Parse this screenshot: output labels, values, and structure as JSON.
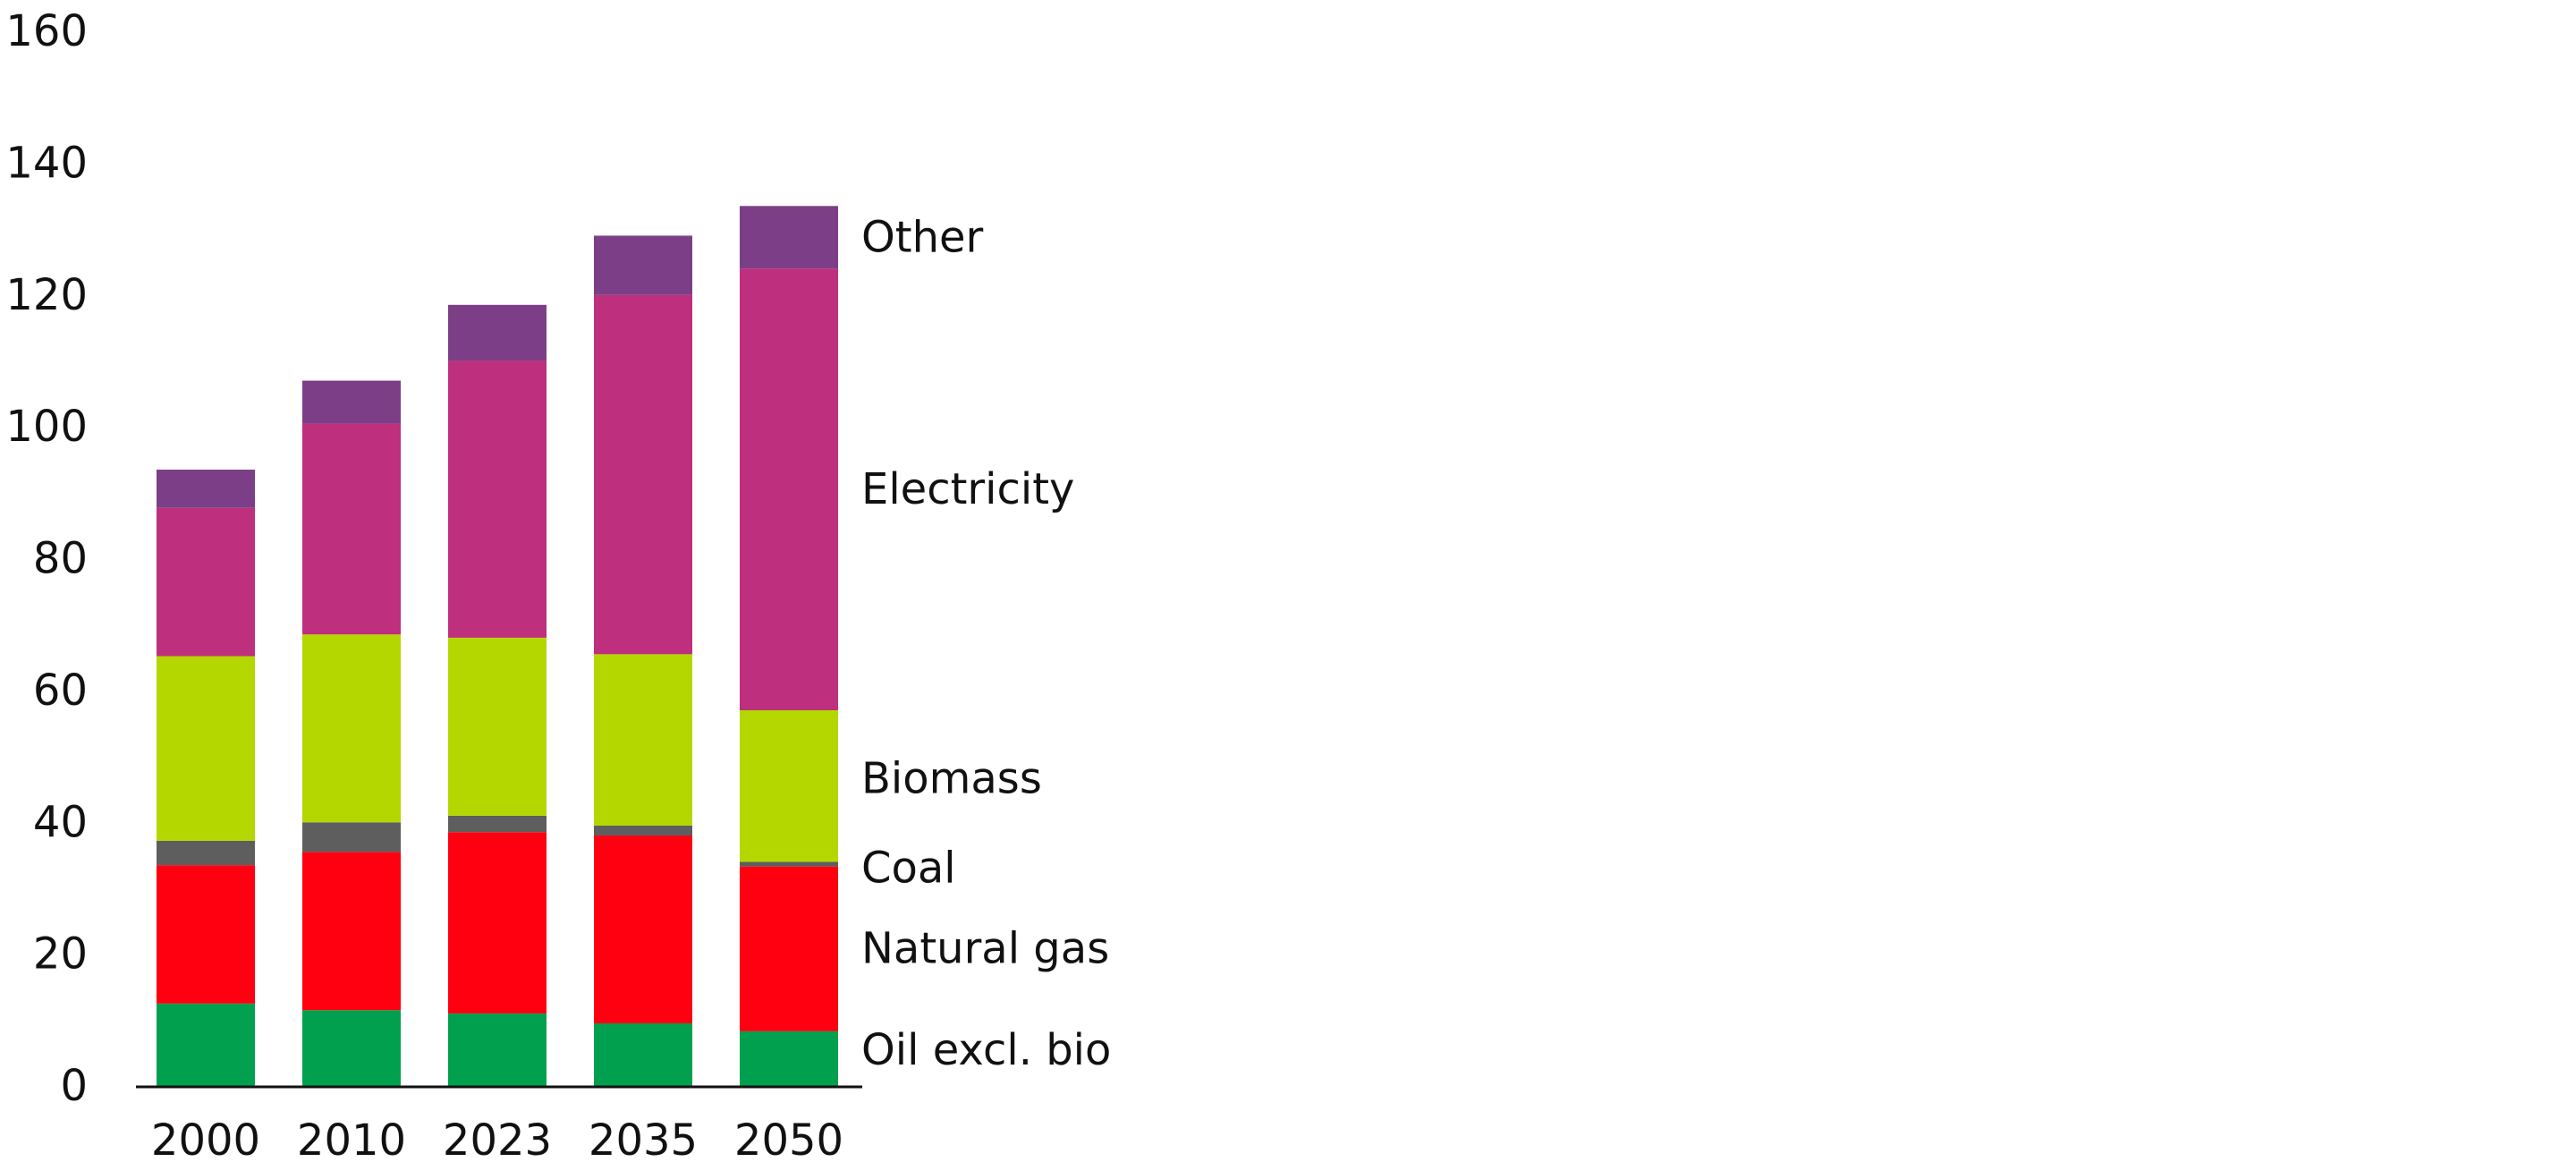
{
  "chart_data": {
    "type": "bar",
    "stacked": true,
    "categories": [
      "2000",
      "2010",
      "2023",
      "2035",
      "2050"
    ],
    "ylim": [
      0,
      160
    ],
    "yticks": [
      "0",
      "20",
      "40",
      "60",
      "80",
      "100",
      "120",
      "140",
      "160"
    ],
    "grid": false,
    "legend": "series labels at right of last bar",
    "series": [
      {
        "name": "Oil excl. bio",
        "color": "#00a04f",
        "values": [
          12.5,
          11.5,
          11,
          9.5,
          8.3
        ]
      },
      {
        "name": "Natural gas",
        "color": "#ff0010",
        "values": [
          21,
          24,
          27.5,
          28.5,
          25
        ]
      },
      {
        "name": "Coal",
        "color": "#5e5e5e",
        "values": [
          3.7,
          4.5,
          2.5,
          1.5,
          0.7
        ]
      },
      {
        "name": "Biomass",
        "color": "#b5d700",
        "values": [
          28,
          28.5,
          27,
          26,
          23
        ]
      },
      {
        "name": "Electricity",
        "color": "#be2f7d",
        "values": [
          22.5,
          32,
          42,
          54.5,
          67
        ]
      },
      {
        "name": "Other",
        "color": "#7c3f87",
        "values": [
          5.8,
          6.5,
          8.5,
          9,
          9.5
        ]
      }
    ]
  }
}
